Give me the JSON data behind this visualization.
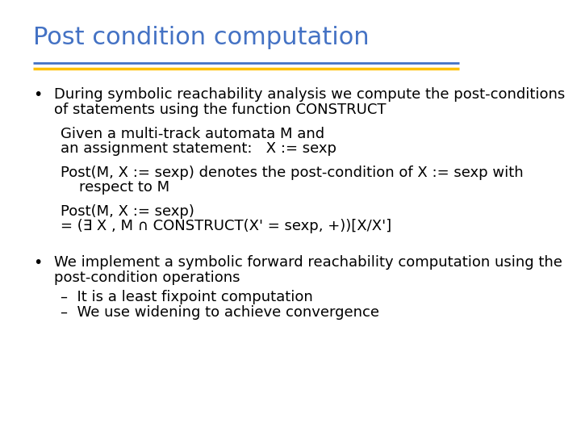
{
  "title": "Post condition computation",
  "title_color": "#4472C4",
  "title_fontsize": 22,
  "bg_color": "#FFFFFF",
  "line1_color": "#4472C4",
  "line2_color": "#FFC000",
  "bullet1_line1": "During symbolic reachability analysis we compute the post-conditions",
  "bullet1_line2": "of statements using the function CONSTRUCT",
  "indent1_line1": "Given a multi-track automata M and",
  "indent1_line2": "an assignment statement:   X := sexp",
  "indent2_line1": "Post(M, X := sexp) denotes the post-condition of X := sexp with",
  "indent2_line2": "    respect to M",
  "indent3_line1": "Post(M, X := sexp)",
  "indent3_line2": "= (∃ X , M ∩ CONSTRUCT(X' = sexp, +))[X/X']",
  "bullet2_line1": "We implement a symbolic forward reachability computation using the",
  "bullet2_line2": "post-condition operations",
  "sub1": "It is a least fixpoint computation",
  "sub2": "We use widening to achieve convergence",
  "text_color": "#000000",
  "body_fontsize": 13,
  "indent_fontsize": 13
}
